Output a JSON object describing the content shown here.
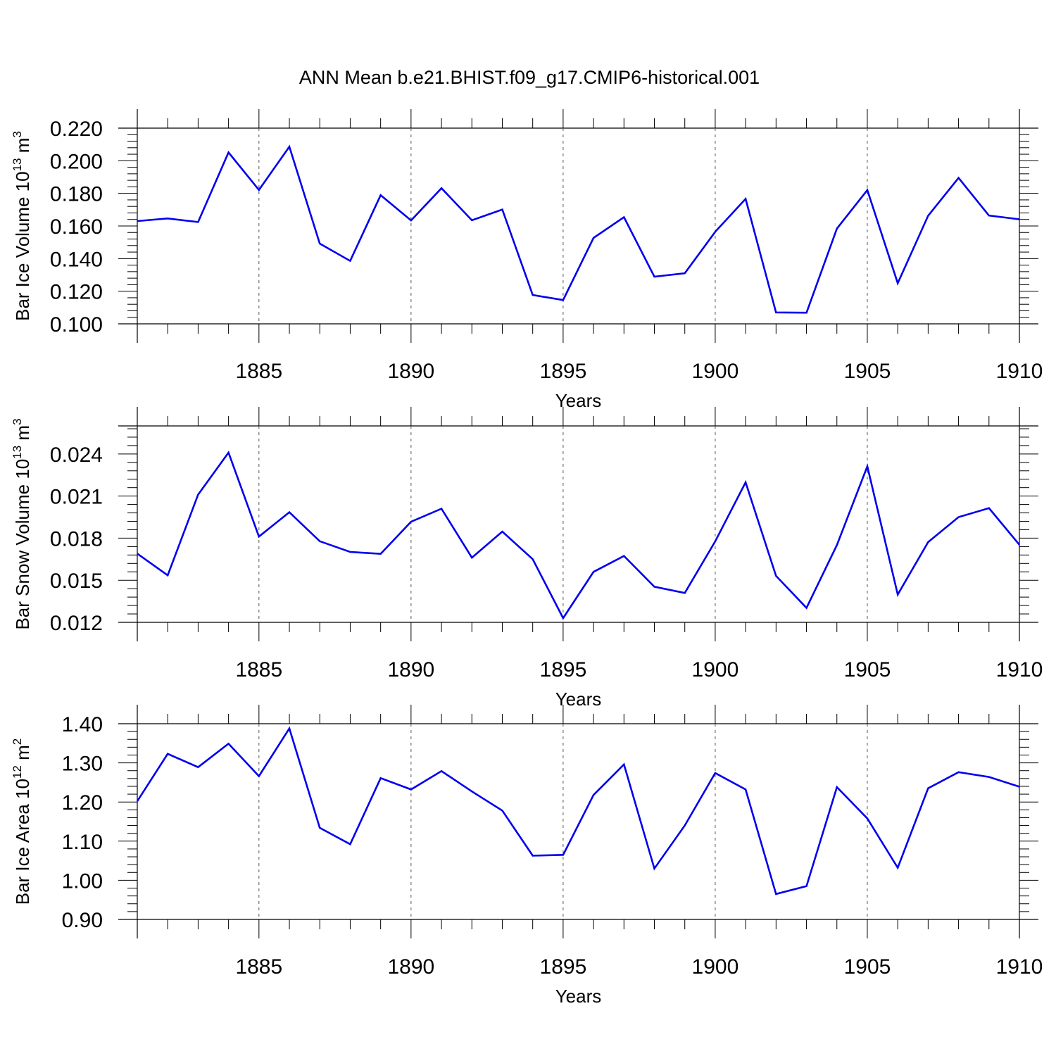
{
  "title": "ANN Mean b.e21.BHIST.f09_g17.CMIP6-historical.001",
  "colors": {
    "line": "#0000ee",
    "axis": "#000000",
    "grid": "#555555"
  },
  "chart_data": [
    {
      "type": "line",
      "title": "",
      "xlabel": "Years",
      "ylabel": {
        "text": "Bar Ice Volume 10",
        "sup": "13",
        "unit": " m",
        "unit_sup": "3"
      },
      "xlim": [
        1881,
        1910
      ],
      "ylim": [
        0.1,
        0.22
      ],
      "xticks": [
        {
          "value": 1885,
          "label": "1885"
        },
        {
          "value": 1890,
          "label": "1890"
        },
        {
          "value": 1895,
          "label": "1895"
        },
        {
          "value": 1900,
          "label": "1900"
        },
        {
          "value": 1905,
          "label": "1905"
        },
        {
          "value": 1910,
          "label": "1910"
        }
      ],
      "yticks": [
        {
          "value": 0.1,
          "label": "0.100"
        },
        {
          "value": 0.12,
          "label": "0.120"
        },
        {
          "value": 0.14,
          "label": "0.140"
        },
        {
          "value": 0.16,
          "label": "0.160"
        },
        {
          "value": 0.18,
          "label": "0.180"
        },
        {
          "value": 0.2,
          "label": "0.200"
        },
        {
          "value": 0.22,
          "label": "0.220"
        }
      ],
      "x": [
        1881,
        1882,
        1883,
        1884,
        1885,
        1886,
        1887,
        1888,
        1889,
        1890,
        1891,
        1892,
        1893,
        1894,
        1895,
        1896,
        1897,
        1898,
        1899,
        1900,
        1901,
        1902,
        1903,
        1904,
        1905,
        1906,
        1907,
        1908,
        1909,
        1910
      ],
      "values": [
        0.163,
        0.1646,
        0.1624,
        0.2051,
        0.1821,
        0.2086,
        0.1492,
        0.1386,
        0.1789,
        0.1634,
        0.1832,
        0.1635,
        0.1701,
        0.1177,
        0.1146,
        0.1527,
        0.1654,
        0.1289,
        0.131,
        0.1564,
        0.1766,
        0.107,
        0.1068,
        0.1584,
        0.182,
        0.1249,
        0.1663,
        0.1895,
        0.1664,
        0.1641
      ]
    },
    {
      "type": "line",
      "title": "",
      "xlabel": "Years",
      "ylabel": {
        "text": "Bar Snow Volume 10",
        "sup": "13",
        "unit": " m",
        "unit_sup": "3"
      },
      "xlim": [
        1881,
        1910
      ],
      "ylim": [
        0.012,
        0.026
      ],
      "xticks": [
        {
          "value": 1885,
          "label": "1885"
        },
        {
          "value": 1890,
          "label": "1890"
        },
        {
          "value": 1895,
          "label": "1895"
        },
        {
          "value": 1900,
          "label": "1900"
        },
        {
          "value": 1905,
          "label": "1905"
        },
        {
          "value": 1910,
          "label": "1910"
        }
      ],
      "yticks": [
        {
          "value": 0.012,
          "label": "0.012"
        },
        {
          "value": 0.015,
          "label": "0.015"
        },
        {
          "value": 0.018,
          "label": "0.018"
        },
        {
          "value": 0.021,
          "label": "0.021"
        },
        {
          "value": 0.024,
          "label": "0.024"
        }
      ],
      "x": [
        1881,
        1882,
        1883,
        1884,
        1885,
        1886,
        1887,
        1888,
        1889,
        1890,
        1891,
        1892,
        1893,
        1894,
        1895,
        1896,
        1897,
        1898,
        1899,
        1900,
        1901,
        1902,
        1903,
        1904,
        1905,
        1906,
        1907,
        1908,
        1909,
        1910
      ],
      "values": [
        0.0169,
        0.01535,
        0.0211,
        0.0241,
        0.01811,
        0.01985,
        0.01778,
        0.01702,
        0.01688,
        0.01917,
        0.0201,
        0.01661,
        0.01847,
        0.0165,
        0.0123,
        0.0156,
        0.01673,
        0.01454,
        0.01409,
        0.01777,
        0.02198,
        0.01531,
        0.01303,
        0.01751,
        0.02312,
        0.01398,
        0.01772,
        0.0195,
        0.02014,
        0.01753
      ]
    },
    {
      "type": "line",
      "title": "",
      "xlabel": "Years",
      "ylabel": {
        "text": "Bar Ice Area 10",
        "sup": "12",
        "unit": " m",
        "unit_sup": "2"
      },
      "xlim": [
        1881,
        1910
      ],
      "ylim": [
        0.9,
        1.4
      ],
      "xticks": [
        {
          "value": 1885,
          "label": "1885"
        },
        {
          "value": 1890,
          "label": "1890"
        },
        {
          "value": 1895,
          "label": "1895"
        },
        {
          "value": 1900,
          "label": "1900"
        },
        {
          "value": 1905,
          "label": "1905"
        },
        {
          "value": 1910,
          "label": "1910"
        }
      ],
      "yticks": [
        {
          "value": 0.9,
          "label": "0.90"
        },
        {
          "value": 1.0,
          "label": "1.00"
        },
        {
          "value": 1.1,
          "label": "1.10"
        },
        {
          "value": 1.2,
          "label": "1.20"
        },
        {
          "value": 1.3,
          "label": "1.30"
        },
        {
          "value": 1.4,
          "label": "1.40"
        }
      ],
      "x": [
        1881,
        1882,
        1883,
        1884,
        1885,
        1886,
        1887,
        1888,
        1889,
        1890,
        1891,
        1892,
        1893,
        1894,
        1895,
        1896,
        1897,
        1898,
        1899,
        1900,
        1901,
        1902,
        1903,
        1904,
        1905,
        1906,
        1907,
        1908,
        1909,
        1910
      ],
      "values": [
        1.202,
        1.323,
        1.289,
        1.349,
        1.266,
        1.388,
        1.134,
        1.092,
        1.261,
        1.232,
        1.279,
        1.227,
        1.178,
        1.063,
        1.065,
        1.218,
        1.296,
        1.03,
        1.14,
        1.274,
        1.232,
        0.965,
        0.985,
        1.238,
        1.158,
        1.032,
        1.235,
        1.276,
        1.264,
        1.239
      ]
    }
  ]
}
